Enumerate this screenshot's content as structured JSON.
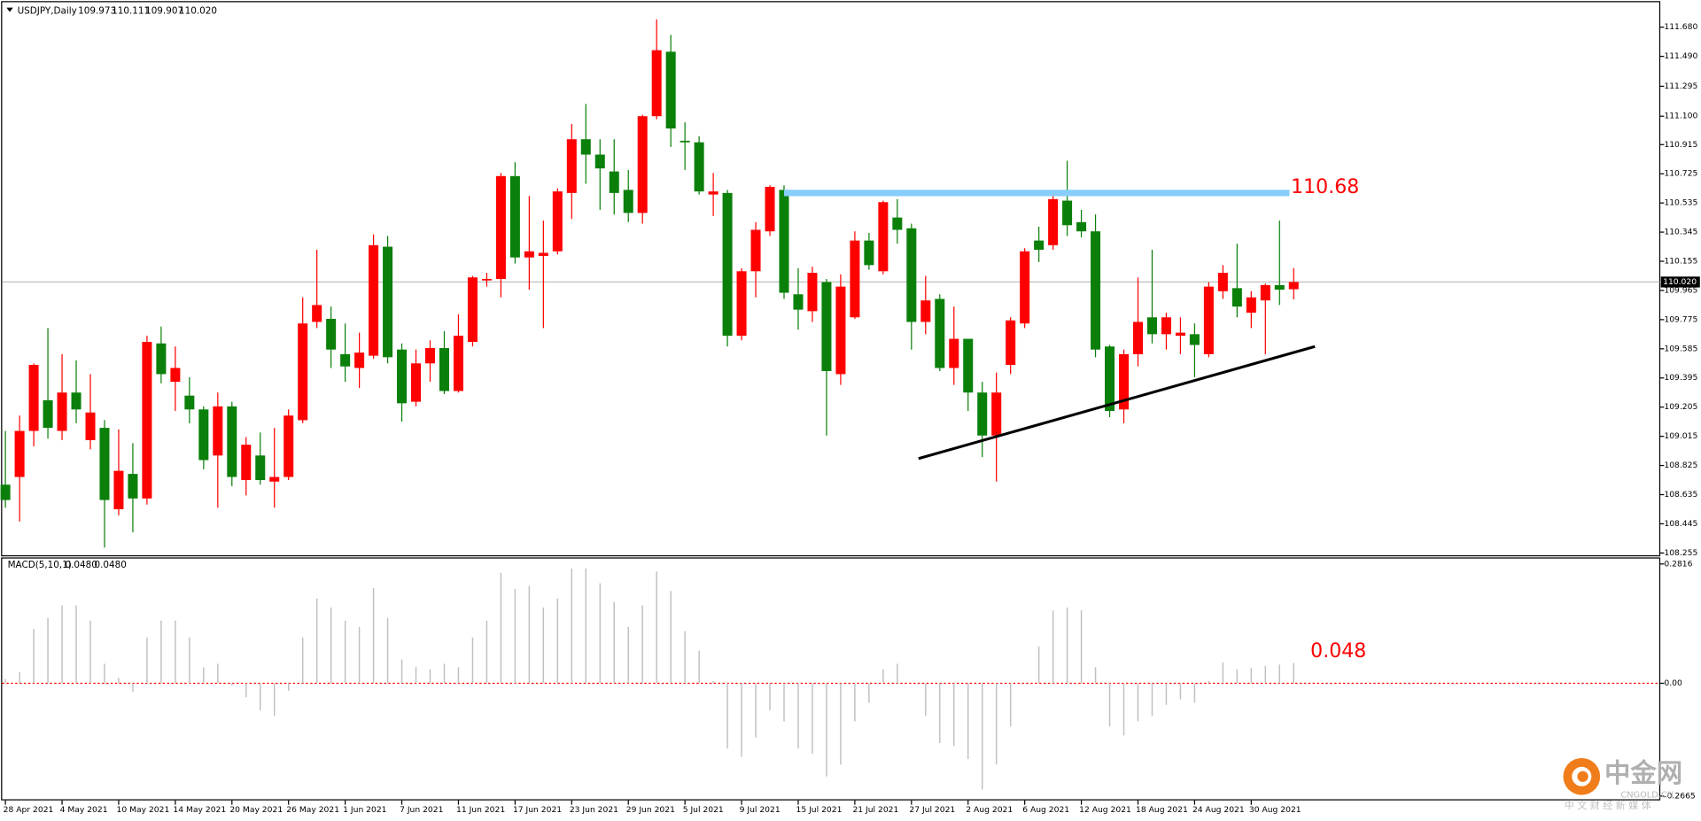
{
  "chart_data": {
    "type": "candlestick",
    "symbol": "USDJPY,Daily",
    "header_values": [
      109.973,
      110.111,
      109.907,
      {
        "value": 110.02,
        "label": "110.020"
      }
    ],
    "categories": [
      "28 Apr 2021",
      null,
      null,
      null,
      "4 May 2021",
      null,
      null,
      null,
      "10 May 2021",
      null,
      null,
      null,
      "14 May 2021",
      null,
      null,
      null,
      "20 May 2021",
      null,
      null,
      null,
      "26 May 2021",
      null,
      null,
      null,
      "1 Jun 2021",
      null,
      null,
      null,
      "7 Jun 2021",
      null,
      null,
      null,
      "11 Jun 2021",
      null,
      null,
      null,
      "17 Jun 2021",
      null,
      null,
      null,
      "23 Jun 2021",
      null,
      null,
      null,
      "29 Jun 2021",
      null,
      null,
      null,
      "5 Jul 2021",
      null,
      null,
      null,
      "9 Jul 2021",
      null,
      null,
      null,
      "15 Jul 2021",
      null,
      null,
      null,
      "21 Jul 2021",
      null,
      null,
      null,
      "27 Jul 2021",
      null,
      null,
      null,
      "2 Aug 2021",
      null,
      null,
      null,
      "6 Aug 2021",
      null,
      null,
      null,
      "12 Aug 2021",
      null,
      null,
      null,
      "18 Aug 2021",
      null,
      null,
      null,
      "24 Aug 2021",
      null,
      null,
      null,
      "30 Aug 2021",
      null,
      null,
      null
    ],
    "open": [
      108.7,
      108.75,
      109.05,
      109.25,
      109.05,
      109.3,
      108.99,
      109.07,
      108.54,
      108.77,
      108.61,
      109.62,
      109.37,
      109.28,
      109.19,
      108.89,
      109.21,
      108.73,
      108.89,
      108.72,
      108.75,
      109.12,
      109.76,
      109.78,
      109.55,
      109.46,
      109.54,
      110.25,
      109.58,
      109.24,
      109.49,
      109.59,
      109.31,
      109.63,
      110.03,
      110.04,
      110.71,
      110.18,
      110.19,
      110.22,
      110.6,
      110.95,
      110.85,
      110.74,
      110.62,
      110.47,
      111.1,
      111.52,
      110.94,
      110.93,
      110.59,
      110.6,
      109.67,
      110.09,
      110.35,
      110.62,
      109.94,
      109.83,
      110.02,
      109.42,
      109.79,
      110.29,
      110.09,
      110.44,
      110.37,
      109.76,
      109.91,
      109.46,
      109.65,
      109.3,
      109.02,
      109.48,
      109.75,
      110.29,
      110.26,
      110.55,
      110.41,
      110.35,
      109.6,
      109.19,
      109.55,
      109.79,
      109.68,
      109.67,
      109.68,
      109.55,
      109.96,
      109.98,
      109.82,
      109.9,
      110.0,
      109.973
    ],
    "high": [
      109.05,
      109.15,
      109.49,
      109.72,
      109.55,
      109.51,
      109.42,
      109.12,
      109.06,
      108.97,
      109.67,
      109.73,
      109.6,
      109.4,
      109.21,
      109.3,
      109.24,
      109.01,
      109.04,
      109.07,
      109.19,
      109.92,
      110.23,
      109.86,
      109.75,
      109.69,
      110.33,
      110.32,
      109.62,
      109.58,
      109.64,
      109.7,
      109.81,
      110.06,
      110.08,
      110.73,
      110.8,
      110.58,
      110.42,
      110.63,
      111.05,
      111.18,
      110.95,
      110.95,
      110.75,
      111.11,
      111.73,
      111.63,
      111.06,
      110.97,
      110.73,
      110.62,
      110.11,
      110.41,
      110.65,
      110.65,
      110.11,
      110.12,
      110.04,
      110.07,
      110.35,
      110.34,
      110.55,
      110.56,
      110.4,
      110.06,
      109.94,
      109.86,
      109.65,
      109.37,
      109.43,
      109.79,
      110.24,
      110.38,
      110.6,
      110.81,
      110.49,
      110.46,
      109.61,
      109.58,
      110.05,
      110.23,
      109.82,
      109.79,
      109.75,
      110.02,
      110.13,
      110.27,
      109.96,
      110.01,
      110.42,
      110.111
    ],
    "low": [
      108.55,
      108.46,
      108.95,
      109.0,
      108.99,
      109.1,
      108.93,
      108.29,
      108.5,
      108.39,
      108.57,
      109.36,
      109.18,
      109.1,
      108.8,
      108.55,
      108.69,
      108.63,
      108.7,
      108.55,
      108.73,
      109.1,
      109.72,
      109.46,
      109.37,
      109.33,
      109.52,
      109.49,
      109.11,
      109.21,
      109.37,
      109.29,
      109.3,
      109.6,
      109.99,
      109.92,
      110.14,
      109.97,
      109.72,
      110.2,
      110.43,
      110.66,
      110.49,
      110.46,
      110.41,
      110.4,
      111.08,
      110.9,
      110.75,
      110.59,
      110.45,
      109.6,
      109.64,
      109.92,
      110.32,
      109.91,
      109.71,
      109.76,
      109.02,
      109.35,
      109.78,
      110.1,
      110.07,
      110.27,
      109.58,
      109.68,
      109.44,
      109.35,
      109.18,
      108.88,
      108.72,
      109.42,
      109.72,
      110.15,
      110.23,
      110.32,
      110.31,
      109.53,
      109.14,
      109.1,
      109.47,
      109.62,
      109.58,
      109.55,
      109.4,
      109.53,
      109.91,
      109.79,
      109.72,
      109.55,
      109.87,
      109.907
    ],
    "close": [
      108.6,
      109.05,
      109.48,
      109.07,
      109.3,
      109.19,
      109.17,
      108.6,
      108.79,
      108.61,
      109.63,
      109.42,
      109.46,
      109.19,
      108.86,
      109.21,
      108.75,
      108.96,
      108.73,
      108.75,
      109.15,
      109.75,
      109.87,
      109.58,
      109.47,
      109.56,
      110.26,
      109.53,
      109.23,
      109.49,
      109.59,
      109.31,
      109.67,
      110.05,
      110.04,
      110.71,
      110.18,
      110.22,
      110.21,
      110.61,
      110.95,
      110.85,
      110.76,
      110.6,
      110.47,
      111.1,
      111.53,
      111.02,
      110.93,
      110.61,
      110.61,
      109.67,
      110.09,
      110.36,
      110.64,
      109.95,
      109.84,
      110.08,
      109.44,
      109.99,
      110.29,
      110.13,
      110.54,
      110.36,
      109.76,
      109.9,
      109.46,
      109.65,
      109.3,
      109.02,
      109.3,
      109.77,
      110.22,
      110.23,
      110.56,
      110.39,
      110.35,
      109.58,
      109.18,
      109.55,
      109.76,
      109.68,
      109.79,
      109.69,
      109.61,
      109.99,
      110.08,
      109.86,
      109.92,
      110.0,
      109.97,
      110.02
    ],
    "up_color": "#ff0000",
    "down_color": "#0a800a",
    "ylim": [
      108.24,
      111.772
    ],
    "yticks": [
      {
        "value": 111.68,
        "label": "111.680"
      },
      {
        "value": 111.49,
        "label": "111.490"
      },
      111.295,
      {
        "value": 111.1,
        "label": "111.100"
      },
      110.915,
      110.725,
      110.535,
      110.345,
      110.155,
      109.965,
      109.775,
      109.585,
      109.395,
      109.205,
      109.015,
      108.825,
      108.635,
      108.445,
      108.255
    ],
    "resistance_line": {
      "level": 110.6,
      "from": 55,
      "to": 90.7,
      "color": "#87cefa"
    },
    "trend_line": {
      "start": [
        64.5,
        108.87
      ],
      "end": [
        92.5,
        109.6
      ],
      "color": "#000000"
    },
    "annotations": [
      {
        "text": "110.68",
        "color": "#ff0000"
      },
      {
        "text": "0.048",
        "color": "#ff0000"
      }
    ],
    "indicator": {
      "name": "MACD(5,10,1)",
      "header_values": [
        {
          "value": 0.048,
          "label": "0.0480"
        },
        {
          "value": 0.048,
          "label": "0.0480"
        }
      ],
      "values": [
        0.01,
        0.026,
        0.128,
        0.154,
        0.184,
        0.184,
        0.148,
        0.046,
        0.013,
        -0.02,
        0.108,
        0.148,
        0.148,
        0.108,
        0.038,
        0.046,
        -0.005,
        -0.033,
        -0.064,
        -0.077,
        -0.018,
        0.108,
        0.2,
        0.179,
        0.148,
        0.133,
        0.225,
        0.154,
        0.056,
        0.038,
        0.033,
        0.046,
        0.038,
        0.108,
        0.148,
        0.261,
        0.223,
        0.23,
        0.179,
        0.2,
        0.271,
        0.271,
        0.236,
        0.192,
        0.133,
        0.184,
        0.264,
        0.218,
        0.123,
        0.077,
        0.005,
        -0.154,
        -0.174,
        -0.128,
        -0.064,
        -0.09,
        -0.154,
        -0.166,
        -0.22,
        -0.192,
        -0.09,
        -0.046,
        0.033,
        0.046,
        0,
        -0.077,
        -0.141,
        -0.148,
        -0.179,
        -0.251,
        -0.192,
        -0.102,
        0,
        0.087,
        0.172,
        0.179,
        0.172,
        0.038,
        -0.102,
        -0.123,
        -0.09,
        -0.077,
        -0.051,
        -0.038,
        -0.046,
        0.005,
        0.049,
        0.033,
        0.036,
        0.041,
        0.044,
        0.048
      ],
      "color": "#c0c0c0",
      "zero_color": "#ff0000",
      "ylim": [
        -0.2765,
        0.297
      ],
      "yticks": [
        0.2816,
        {
          "value": 0,
          "label": "0.00"
        },
        -0.2665
      ]
    },
    "watermark": {
      "logo": "中金网",
      "site": "CNGOLD.CN",
      "slogan": "中 文 财 经 新 媒 体"
    }
  }
}
